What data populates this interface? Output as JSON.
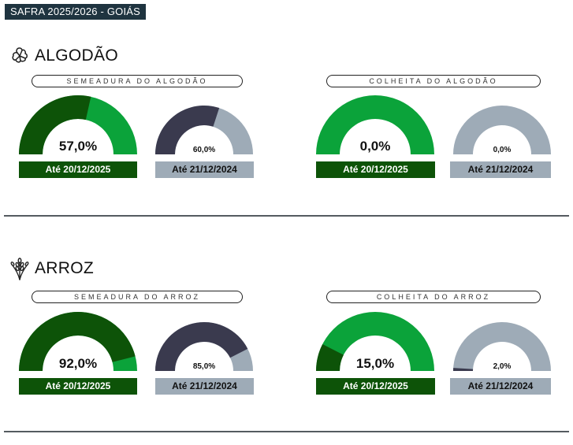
{
  "header": {
    "title": "SAFRA 2025/2026 - GOIÁS"
  },
  "colors": {
    "dark_green": "#0d5308",
    "green": "#0ba33a",
    "navy": "#3a3a4e",
    "gray": "#9eabb7"
  },
  "sections": [
    {
      "title": "ALGODÃO",
      "icon": "cotton-icon",
      "groups": [
        {
          "label": "SEMEADURA DO ALGODÃO",
          "current": {
            "value": "57,0%",
            "percent": 57.0,
            "date": "Até 20/12/2025"
          },
          "previous": {
            "value": "60,0%",
            "percent": 60.0,
            "date": "Até 21/12/2024"
          }
        },
        {
          "label": "COLHEITA DO ALGODÃO",
          "current": {
            "value": "0,0%",
            "percent": 0.0,
            "date": "Até 20/12/2025"
          },
          "previous": {
            "value": "0,0%",
            "percent": 0.0,
            "date": "Até 21/12/2024"
          }
        }
      ]
    },
    {
      "title": "ARROZ",
      "icon": "rice-plant-icon",
      "groups": [
        {
          "label": "SEMEADURA DO ARROZ",
          "current": {
            "value": "92,0%",
            "percent": 92.0,
            "date": "Até 20/12/2025"
          },
          "previous": {
            "value": "85,0%",
            "percent": 85.0,
            "date": "Até 21/12/2024"
          }
        },
        {
          "label": "COLHEITA DO ARROZ",
          "current": {
            "value": "15,0%",
            "percent": 15.0,
            "date": "Até 20/12/2025"
          },
          "previous": {
            "value": "2,0%",
            "percent": 2.0,
            "date": "Até 21/12/2024"
          }
        }
      ]
    }
  ]
}
